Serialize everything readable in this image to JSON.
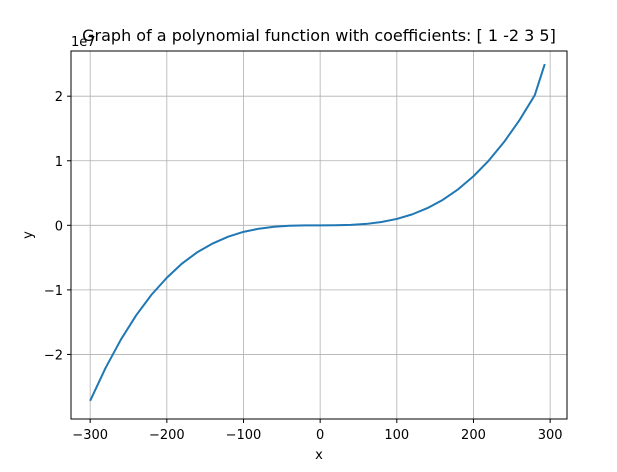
{
  "chart_data": {
    "type": "line",
    "title": "Graph of a polynomial function with coefficients: [ 1 -2  3  5]",
    "xlabel": "x",
    "ylabel": "y",
    "y_offset_label": "1e7",
    "y_scale": 10000000,
    "coefficients": [
      1,
      -2,
      3,
      5
    ],
    "xlim": [
      -325,
      322
    ],
    "ylim": [
      -30000000,
      27000000
    ],
    "x_ticks": [
      -300,
      -200,
      -100,
      0,
      100,
      200,
      300
    ],
    "x_tick_labels": [
      "−300",
      "−200",
      "−100",
      "0",
      "100",
      "200",
      "300"
    ],
    "y_ticks": [
      -20000000,
      -10000000,
      0,
      10000000,
      20000000
    ],
    "y_tick_labels": [
      "−2",
      "−1",
      "0",
      "1",
      "2"
    ],
    "grid": true,
    "series": [
      {
        "color": "#1f77b4",
        "x": [
          -300,
          -280,
          -260,
          -240,
          -220,
          -200,
          -180,
          -160,
          -140,
          -120,
          -100,
          -80,
          -60,
          -40,
          -20,
          0,
          20,
          40,
          60,
          80,
          100,
          120,
          140,
          160,
          180,
          200,
          220,
          240,
          260,
          280,
          293
        ],
        "y": [
          -27180895,
          -22112835,
          -17712775,
          -13939915,
          -10753455,
          -8120595,
          -5897535,
          -4146475,
          -2802615,
          -1757355,
          -1010295,
          -524235,
          -223175,
          -67315,
          -8855,
          5,
          7345,
          62185,
          214625,
          510865,
          990305,
          1694545,
          2666785,
          3948625,
          5581665,
          7600605,
          10034345,
          12916985,
          16283825,
          20170665,
          24982355
        ]
      }
    ]
  }
}
